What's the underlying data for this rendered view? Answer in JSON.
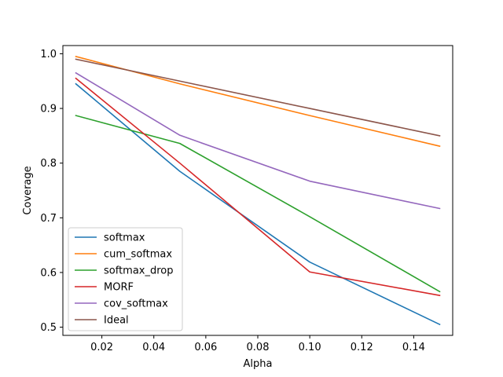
{
  "chart_data": {
    "type": "line",
    "title": "",
    "xlabel": "Alpha",
    "ylabel": "Coverage",
    "xlim": [
      0.005,
      0.155
    ],
    "ylim": [
      0.485,
      1.015
    ],
    "xticks": [
      0.02,
      0.04,
      0.06,
      0.08,
      0.1,
      0.12,
      0.14
    ],
    "xtick_labels": [
      "0.02",
      "0.04",
      "0.06",
      "0.08",
      "0.10",
      "0.12",
      "0.14"
    ],
    "yticks": [
      0.5,
      0.6,
      0.7,
      0.8,
      0.9,
      1.0
    ],
    "ytick_labels": [
      "0.5",
      "0.6",
      "0.7",
      "0.8",
      "0.9",
      "1.0"
    ],
    "grid": false,
    "legend_position": "lower-left",
    "x": [
      0.01,
      0.05,
      0.1,
      0.15
    ],
    "series": [
      {
        "name": "softmax",
        "color": "#1f77b4",
        "values": [
          0.945,
          0.785,
          0.619,
          0.505
        ]
      },
      {
        "name": "cum_softmax",
        "color": "#ff7f0e",
        "values": [
          0.995,
          0.945,
          0.887,
          0.831
        ]
      },
      {
        "name": "softmax_drop",
        "color": "#2ca02c",
        "values": [
          0.887,
          0.836,
          0.702,
          0.565
        ]
      },
      {
        "name": "MORF",
        "color": "#d62728",
        "values": [
          0.955,
          0.8,
          0.601,
          0.558
        ]
      },
      {
        "name": "cov_softmax",
        "color": "#9467bd",
        "values": [
          0.965,
          0.851,
          0.767,
          0.717
        ]
      },
      {
        "name": "Ideal",
        "color": "#8c564b",
        "values": [
          0.99,
          0.95,
          0.9,
          0.85
        ]
      }
    ]
  }
}
